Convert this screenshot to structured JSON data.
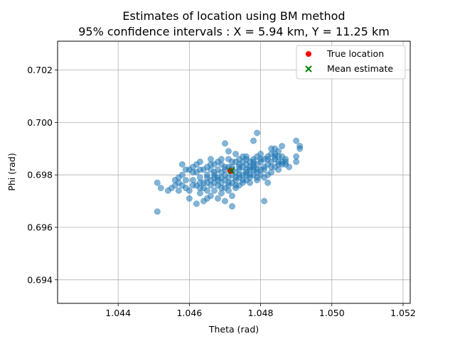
{
  "chart_data": {
    "type": "scatter",
    "title": "Estimates of location using BM method",
    "subtitle": "95% confidence intervals : X = 5.94 km, Y = 11.25 km",
    "xlabel": "Theta (rad)",
    "ylabel": "Phi (rad)",
    "xlim": [
      1.0423,
      1.0522
    ],
    "ylim": [
      0.6931,
      0.7031
    ],
    "x_ticks": [
      1.044,
      1.046,
      1.048,
      1.05,
      1.052
    ],
    "y_ticks": [
      0.694,
      0.696,
      0.698,
      0.7,
      0.702
    ],
    "x_tick_labels": [
      "1.044",
      "1.046",
      "1.048",
      "1.050",
      "1.052"
    ],
    "y_tick_labels": [
      "0.694",
      "0.696",
      "0.698",
      "0.700",
      "0.702"
    ],
    "grid": true,
    "legend_position": "top-right",
    "colors": {
      "estimates": "#1f77b4",
      "true_location": "#ff0000",
      "mean_estimate": "#008000",
      "grid": "#b0b0b0"
    },
    "series": [
      {
        "marker": "circle",
        "points": [
          [
            1.0451,
            0.6966
          ],
          [
            1.0451,
            0.6977
          ],
          [
            1.0452,
            0.6975
          ],
          [
            1.0454,
            0.6974
          ],
          [
            1.0455,
            0.6975
          ],
          [
            1.0456,
            0.6978
          ],
          [
            1.0457,
            0.6979
          ],
          [
            1.0458,
            0.6984
          ],
          [
            1.0457,
            0.6974
          ],
          [
            1.0458,
            0.6976
          ],
          [
            1.0459,
            0.6975
          ],
          [
            1.0459,
            0.6978
          ],
          [
            1.0459,
            0.6982
          ],
          [
            1.046,
            0.6974
          ],
          [
            1.046,
            0.6971
          ],
          [
            1.0461,
            0.6978
          ],
          [
            1.0461,
            0.6981
          ],
          [
            1.0462,
            0.6969
          ],
          [
            1.0462,
            0.6976
          ],
          [
            1.0463,
            0.6973
          ],
          [
            1.0463,
            0.6979
          ],
          [
            1.0463,
            0.6982
          ],
          [
            1.0464,
            0.697
          ],
          [
            1.0464,
            0.6975
          ],
          [
            1.0465,
            0.6971
          ],
          [
            1.0465,
            0.6977
          ],
          [
            1.0465,
            0.698
          ],
          [
            1.0466,
            0.6972
          ],
          [
            1.0466,
            0.6978
          ],
          [
            1.0466,
            0.6982
          ],
          [
            1.0466,
            0.6986
          ],
          [
            1.0467,
            0.6974
          ],
          [
            1.0467,
            0.6977
          ],
          [
            1.0467,
            0.698
          ],
          [
            1.0467,
            0.6984
          ],
          [
            1.0468,
            0.6971
          ],
          [
            1.0468,
            0.6976
          ],
          [
            1.0468,
            0.6979
          ],
          [
            1.0468,
            0.6982
          ],
          [
            1.0469,
            0.6973
          ],
          [
            1.0469,
            0.6977
          ],
          [
            1.0469,
            0.6981
          ],
          [
            1.0469,
            0.6984
          ],
          [
            1.047,
            0.697
          ],
          [
            1.047,
            0.6975
          ],
          [
            1.047,
            0.6978
          ],
          [
            1.047,
            0.6982
          ],
          [
            1.0471,
            0.6976
          ],
          [
            1.0471,
            0.6979
          ],
          [
            1.0471,
            0.6983
          ],
          [
            1.0471,
            0.6986
          ],
          [
            1.0472,
            0.6972
          ],
          [
            1.0472,
            0.6977
          ],
          [
            1.0472,
            0.698
          ],
          [
            1.0472,
            0.6983
          ],
          [
            1.0473,
            0.6975
          ],
          [
            1.0473,
            0.6978
          ],
          [
            1.0473,
            0.6981
          ],
          [
            1.0473,
            0.6985
          ],
          [
            1.0474,
            0.6976
          ],
          [
            1.0474,
            0.6979
          ],
          [
            1.0474,
            0.6982
          ],
          [
            1.0474,
            0.6986
          ],
          [
            1.0475,
            0.6977
          ],
          [
            1.0475,
            0.698
          ],
          [
            1.0475,
            0.6983
          ],
          [
            1.0475,
            0.6987
          ],
          [
            1.0476,
            0.6978
          ],
          [
            1.0476,
            0.6981
          ],
          [
            1.0476,
            0.6984
          ],
          [
            1.0477,
            0.6979
          ],
          [
            1.0477,
            0.6982
          ],
          [
            1.0477,
            0.6985
          ],
          [
            1.0478,
            0.698
          ],
          [
            1.0478,
            0.6983
          ],
          [
            1.0478,
            0.6986
          ],
          [
            1.0479,
            0.6981
          ],
          [
            1.0479,
            0.6984
          ],
          [
            1.0479,
            0.6987
          ],
          [
            1.048,
            0.6982
          ],
          [
            1.048,
            0.6985
          ],
          [
            1.048,
            0.6988
          ],
          [
            1.0481,
            0.697
          ],
          [
            1.0481,
            0.6983
          ],
          [
            1.0481,
            0.6986
          ],
          [
            1.0482,
            0.6977
          ],
          [
            1.0482,
            0.6984
          ],
          [
            1.0482,
            0.6987
          ],
          [
            1.0483,
            0.6981
          ],
          [
            1.0483,
            0.6985
          ],
          [
            1.0483,
            0.699
          ],
          [
            1.0484,
            0.6983
          ],
          [
            1.0484,
            0.6986
          ],
          [
            1.0484,
            0.6988
          ],
          [
            1.0485,
            0.6982
          ],
          [
            1.0485,
            0.6985
          ],
          [
            1.0485,
            0.6989
          ],
          [
            1.0486,
            0.6984
          ],
          [
            1.0486,
            0.6987
          ],
          [
            1.0486,
            0.6991
          ],
          [
            1.0487,
            0.6984
          ],
          [
            1.0487,
            0.6986
          ],
          [
            1.0488,
            0.6983
          ],
          [
            1.049,
            0.6993
          ],
          [
            1.049,
            0.6987
          ],
          [
            1.049,
            0.6985
          ],
          [
            1.0491,
            0.6991
          ],
          [
            1.0491,
            0.699
          ],
          [
            1.0472,
            0.6968
          ],
          [
            1.0471,
            0.6989
          ],
          [
            1.047,
            0.6992
          ],
          [
            1.0478,
            0.6993
          ],
          [
            1.0479,
            0.6996
          ],
          [
            1.0464,
            0.6982
          ],
          [
            1.0462,
            0.6984
          ],
          [
            1.0466,
            0.6984
          ],
          [
            1.0468,
            0.6985
          ],
          [
            1.0469,
            0.6986
          ],
          [
            1.0473,
            0.6988
          ],
          [
            1.0474,
            0.6983
          ],
          [
            1.0476,
            0.698
          ],
          [
            1.0477,
            0.6983
          ],
          [
            1.0463,
            0.6985
          ],
          [
            1.0465,
            0.6983
          ],
          [
            1.0467,
            0.6981
          ],
          [
            1.047,
            0.6983
          ],
          [
            1.0472,
            0.6985
          ],
          [
            1.0475,
            0.6985
          ],
          [
            1.0476,
            0.6987
          ],
          [
            1.0478,
            0.6982
          ],
          [
            1.0479,
            0.6982
          ],
          [
            1.048,
            0.698
          ],
          [
            1.0482,
            0.698
          ],
          [
            1.0483,
            0.6988
          ],
          [
            1.0484,
            0.699
          ],
          [
            1.0485,
            0.6987
          ],
          [
            1.0473,
            0.6979
          ],
          [
            1.0471,
            0.6977
          ],
          [
            1.0469,
            0.6979
          ],
          [
            1.0467,
            0.6979
          ],
          [
            1.0465,
            0.6979
          ],
          [
            1.0463,
            0.6977
          ],
          [
            1.0474,
            0.698
          ],
          [
            1.0476,
            0.6982
          ],
          [
            1.0477,
            0.698
          ],
          [
            1.0478,
            0.6985
          ],
          [
            1.0479,
            0.6979
          ],
          [
            1.0481,
            0.6982
          ],
          [
            1.0482,
            0.6986
          ],
          [
            1.0484,
            0.6987
          ],
          [
            1.0486,
            0.6985
          ],
          [
            1.0487,
            0.6985
          ],
          [
            1.046,
            0.6982
          ],
          [
            1.0461,
            0.6983
          ],
          [
            1.0462,
            0.6981
          ],
          [
            1.0464,
            0.6977
          ],
          [
            1.0466,
            0.6976
          ],
          [
            1.0468,
            0.6978
          ],
          [
            1.047,
            0.698
          ],
          [
            1.0472,
            0.6982
          ],
          [
            1.0474,
            0.6984
          ],
          [
            1.0476,
            0.6986
          ],
          [
            1.0478,
            0.6984
          ],
          [
            1.048,
            0.6986
          ],
          [
            1.0483,
            0.6983
          ],
          [
            1.0485,
            0.6984
          ],
          [
            1.0458,
            0.698
          ],
          [
            1.0456,
            0.6976
          ],
          [
            1.0457,
            0.6977
          ],
          [
            1.0461,
            0.6976
          ],
          [
            1.0463,
            0.6975
          ],
          [
            1.0465,
            0.6974
          ],
          [
            1.0469,
            0.6975
          ],
          [
            1.0471,
            0.6974
          ],
          [
            1.0473,
            0.6976
          ],
          [
            1.0475,
            0.6978
          ],
          [
            1.0477,
            0.6977
          ],
          [
            1.0479,
            0.6978
          ],
          [
            1.0481,
            0.6979
          ]
        ]
      },
      {
        "name": "True location",
        "marker": "dot",
        "points": [
          [
            1.04715,
            0.69815
          ]
        ]
      },
      {
        "name": "Mean estimate",
        "marker": "x",
        "points": [
          [
            1.04718,
            0.69816
          ]
        ]
      }
    ]
  }
}
